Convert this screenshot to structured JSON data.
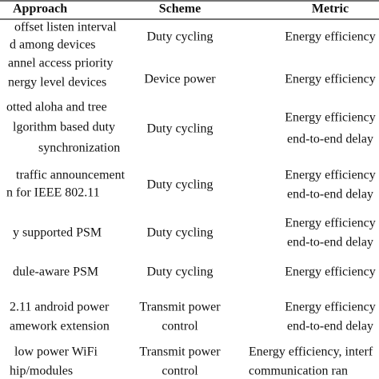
{
  "table": {
    "header": [
      "Approach",
      "Scheme",
      "Metric"
    ],
    "rows": [
      [
        [
          "offset listen interval",
          "d among devices"
        ],
        [
          "Duty cycling"
        ],
        [
          "Energy efficiency"
        ]
      ],
      [
        [
          "annel access priority",
          "nergy level devices"
        ],
        [
          "Device power"
        ],
        [
          "Energy efficiency"
        ]
      ],
      [
        [
          "otted aloha and tree",
          "lgorithm based duty",
          "synchronization"
        ],
        [
          "Duty cycling"
        ],
        [
          "Energy efficiency",
          "end-to-end delay"
        ]
      ],
      [
        [
          "traffic announcement",
          "n for IEEE 802.11"
        ],
        [
          "Duty cycling"
        ],
        [
          "Energy efficiency",
          "end-to-end delay"
        ]
      ],
      [
        [
          "y supported PSM"
        ],
        [
          "Duty cycling"
        ],
        [
          "Energy efficiency",
          "end-to-end delay"
        ]
      ],
      [
        [
          "dule-aware PSM"
        ],
        [
          "Duty cycling"
        ],
        [
          "Energy efficiency"
        ]
      ],
      [
        [
          "2.11 android power",
          "amework extension"
        ],
        [
          "Transmit power",
          "control"
        ],
        [
          "Energy efficiency",
          "end-to-end delay"
        ]
      ],
      [
        [
          "low power WiFi",
          "hip/modules"
        ],
        [
          "Transmit power",
          "control"
        ],
        [
          "Energy efficiency, interf",
          "communication ran"
        ]
      ]
    ]
  }
}
